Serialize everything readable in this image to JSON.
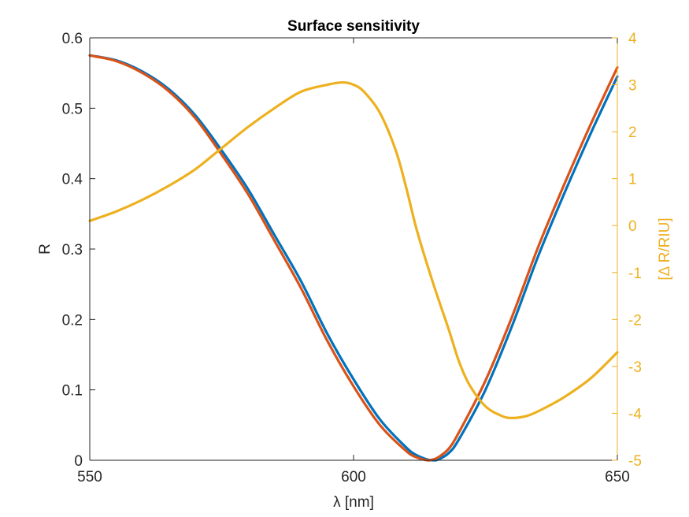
{
  "chart_data": {
    "type": "line",
    "title": "Surface sensitivity",
    "xlabel": "λ [nm]",
    "ylabel_left": "R",
    "ylabel_right": "[Δ R/RIU]",
    "xlim": [
      550,
      650
    ],
    "ylim_left": [
      0,
      0.6
    ],
    "ylim_right": [
      -5,
      4
    ],
    "x_ticks": [
      "550",
      "600",
      "650"
    ],
    "y_left_ticks": [
      "0",
      "0.1",
      "0.2",
      "0.3",
      "0.4",
      "0.5",
      "0.6"
    ],
    "y_right_ticks": [
      "-5",
      "-4",
      "-3",
      "-2",
      "-1",
      "0",
      "1",
      "2",
      "3",
      "4"
    ],
    "grid": false,
    "colors": {
      "series1": "#0072BD",
      "series2": "#D95319",
      "series3": "#EDB120",
      "axis": "#262626"
    },
    "series": [
      {
        "axis": "left",
        "x": [
          550,
          555,
          560,
          565,
          570,
          575,
          580,
          585,
          590,
          595,
          600,
          605,
          610,
          612,
          614,
          615,
          616,
          618,
          620,
          625,
          630,
          635,
          640,
          645,
          650
        ],
        "y": [
          0.575,
          0.568,
          0.552,
          0.527,
          0.49,
          0.44,
          0.385,
          0.32,
          0.255,
          0.18,
          0.115,
          0.058,
          0.018,
          0.007,
          0.001,
          0.0,
          0.001,
          0.01,
          0.03,
          0.1,
          0.19,
          0.29,
          0.38,
          0.465,
          0.545
        ]
      },
      {
        "axis": "left",
        "x": [
          550,
          555,
          560,
          565,
          570,
          575,
          580,
          585,
          590,
          595,
          600,
          605,
          610,
          612,
          614,
          615,
          616,
          618,
          620,
          625,
          630,
          635,
          640,
          645,
          650
        ],
        "y": [
          0.575,
          0.567,
          0.55,
          0.524,
          0.486,
          0.434,
          0.378,
          0.312,
          0.245,
          0.17,
          0.105,
          0.05,
          0.013,
          0.004,
          0.0,
          0.001,
          0.004,
          0.016,
          0.04,
          0.113,
          0.203,
          0.303,
          0.393,
          0.478,
          0.558
        ]
      },
      {
        "axis": "right",
        "x": [
          550,
          555,
          560,
          565,
          570,
          575,
          580,
          585,
          590,
          595,
          598,
          600,
          602,
          605,
          608,
          610,
          612,
          615,
          618,
          620,
          622,
          625,
          628,
          630,
          633,
          636,
          640,
          645,
          650
        ],
        "y": [
          0.1,
          0.3,
          0.55,
          0.85,
          1.2,
          1.65,
          2.1,
          2.5,
          2.85,
          3.0,
          3.05,
          3.0,
          2.85,
          2.4,
          1.6,
          0.8,
          -0.1,
          -1.2,
          -2.2,
          -2.9,
          -3.4,
          -3.85,
          -4.05,
          -4.1,
          -4.05,
          -3.9,
          -3.65,
          -3.25,
          -2.7
        ]
      }
    ]
  }
}
